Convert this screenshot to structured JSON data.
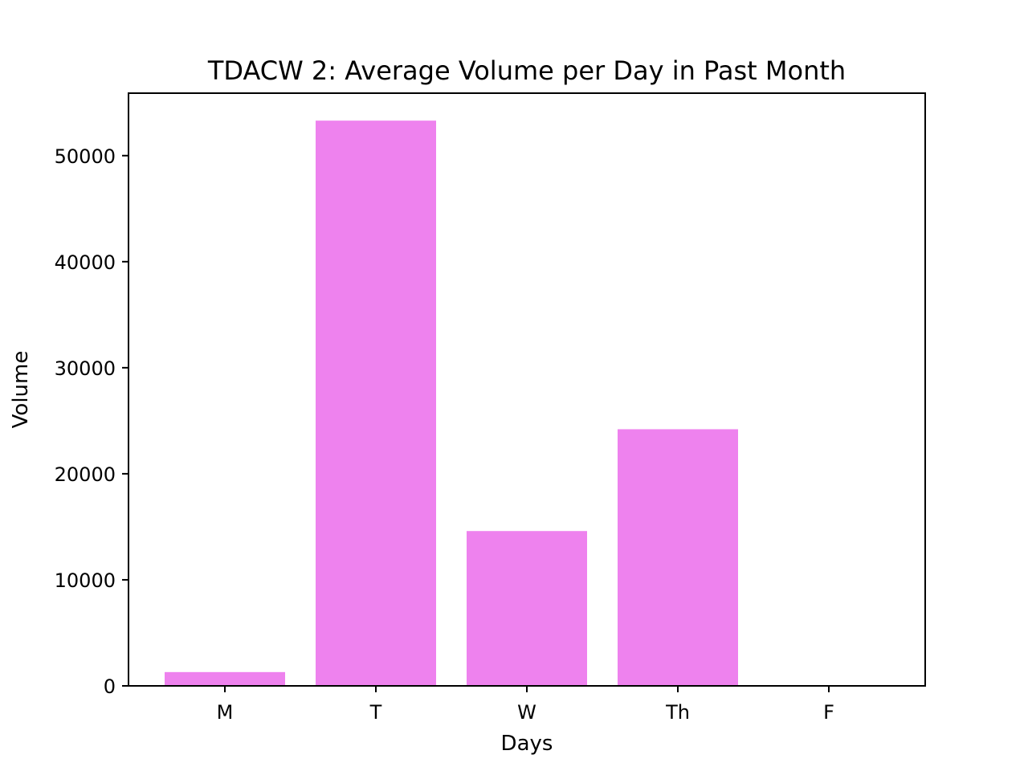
{
  "chart_data": {
    "type": "bar",
    "title": "TDACW 2: Average Volume per Day in Past Month",
    "xlabel": "Days",
    "ylabel": "Volume",
    "categories": [
      "M",
      "T",
      "W",
      "Th",
      "F"
    ],
    "values": [
      1300,
      53300,
      14600,
      24200,
      0
    ],
    "ylim": [
      0,
      55890
    ],
    "yticks": [
      0,
      10000,
      20000,
      30000,
      40000,
      50000
    ],
    "ytick_labels": [
      "0",
      "10000",
      "20000",
      "30000",
      "40000",
      "50000"
    ],
    "bar_color": "#ee82ee",
    "grid": false,
    "legend": "none"
  }
}
